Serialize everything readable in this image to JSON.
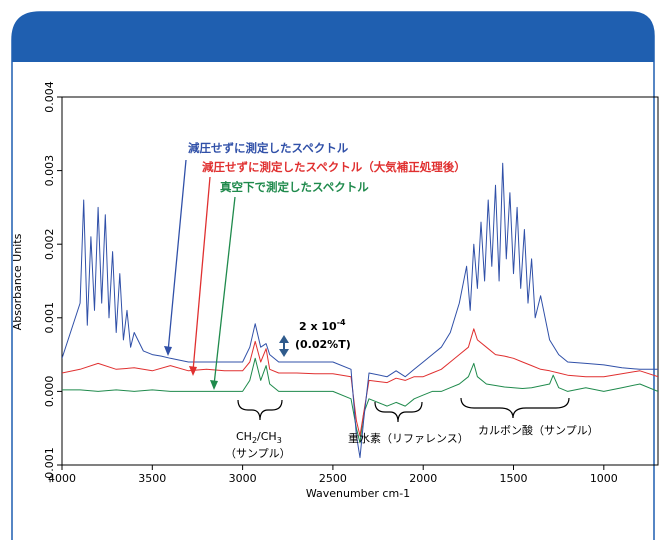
{
  "chart_data": {
    "type": "line",
    "title": "",
    "xlabel": "Wavenumber cm-1",
    "ylabel": "Absorbance Units",
    "xlim": [
      4000,
      700
    ],
    "x_reversed": true,
    "ylim": [
      -0.001,
      0.004
    ],
    "x_ticks": [
      "4000",
      "3500",
      "3000",
      "2500",
      "2000",
      "1500",
      "1000"
    ],
    "x_tick_values": [
      4000,
      3500,
      3000,
      2500,
      2000,
      1500,
      1000
    ],
    "y_ticks": [
      "-0.001",
      "0.000",
      "0.001",
      "0.002",
      "0.003",
      "0.004"
    ],
    "y_tick_values": [
      -0.001,
      0.0,
      0.001,
      0.002,
      0.003,
      0.004
    ],
    "grid": false,
    "series": [
      {
        "name": "減圧せずに測定したスペクトル",
        "color": "#3050a8",
        "x": [
          4000,
          3900,
          3880,
          3860,
          3840,
          3820,
          3800,
          3780,
          3760,
          3740,
          3720,
          3700,
          3680,
          3660,
          3640,
          3620,
          3600,
          3550,
          3500,
          3450,
          3400,
          3300,
          3200,
          3100,
          3000,
          2960,
          2930,
          2900,
          2870,
          2850,
          2800,
          2700,
          2600,
          2500,
          2400,
          2370,
          2350,
          2330,
          2300,
          2200,
          2150,
          2100,
          2050,
          2000,
          1950,
          1900,
          1850,
          1800,
          1760,
          1740,
          1720,
          1700,
          1680,
          1660,
          1640,
          1620,
          1600,
          1580,
          1560,
          1540,
          1520,
          1500,
          1480,
          1460,
          1440,
          1420,
          1400,
          1380,
          1350,
          1300,
          1250,
          1200,
          1100,
          1000,
          900,
          800,
          700
        ],
        "values": [
          0.00045,
          0.0012,
          0.0026,
          0.0009,
          0.0021,
          0.0011,
          0.0025,
          0.0012,
          0.0024,
          0.001,
          0.0019,
          0.0008,
          0.0016,
          0.0007,
          0.0011,
          0.0006,
          0.0008,
          0.00055,
          0.0005,
          0.00048,
          0.00045,
          0.0004,
          0.0004,
          0.0004,
          0.0004,
          0.0006,
          0.00092,
          0.0006,
          0.00065,
          0.0005,
          0.0004,
          0.0004,
          0.0004,
          0.0004,
          0.0003,
          -0.0006,
          -0.0009,
          -0.0004,
          0.00025,
          0.0002,
          0.00028,
          0.0002,
          0.0003,
          0.0004,
          0.0005,
          0.0006,
          0.0008,
          0.0012,
          0.0017,
          0.0011,
          0.002,
          0.0014,
          0.0023,
          0.0015,
          0.0026,
          0.0017,
          0.0028,
          0.0015,
          0.0031,
          0.0018,
          0.0027,
          0.0016,
          0.0025,
          0.0014,
          0.0022,
          0.0012,
          0.0018,
          0.001,
          0.0013,
          0.0007,
          0.0005,
          0.0004,
          0.00038,
          0.00036,
          0.00032,
          0.0003,
          0.0003
        ]
      },
      {
        "name": "減圧せずに測定したスペクトル（大気補正処理後）",
        "color": "#e03030",
        "x": [
          4000,
          3900,
          3800,
          3700,
          3600,
          3500,
          3400,
          3300,
          3200,
          3100,
          3000,
          2960,
          2930,
          2900,
          2870,
          2850,
          2800,
          2700,
          2600,
          2500,
          2400,
          2370,
          2350,
          2330,
          2300,
          2200,
          2150,
          2100,
          2050,
          2000,
          1950,
          1900,
          1850,
          1800,
          1750,
          1720,
          1700,
          1650,
          1600,
          1550,
          1500,
          1450,
          1400,
          1350,
          1300,
          1250,
          1200,
          1100,
          1000,
          900,
          800,
          700
        ],
        "values": [
          0.00025,
          0.0003,
          0.00038,
          0.0003,
          0.00032,
          0.00028,
          0.00035,
          0.00028,
          0.0003,
          0.00028,
          0.00028,
          0.0004,
          0.00068,
          0.0004,
          0.00058,
          0.0003,
          0.00025,
          0.00025,
          0.00024,
          0.00024,
          0.0002,
          -0.0004,
          -0.0006,
          -0.0003,
          0.00015,
          0.00012,
          0.00018,
          0.00015,
          0.0002,
          0.0002,
          0.00025,
          0.0003,
          0.0004,
          0.0005,
          0.0006,
          0.00085,
          0.0007,
          0.0006,
          0.0005,
          0.00048,
          0.00045,
          0.0004,
          0.00035,
          0.0003,
          0.00028,
          0.00025,
          0.00022,
          0.0002,
          0.0002,
          0.00024,
          0.00028,
          0.0002
        ]
      },
      {
        "name": "真空下で測定したスペクトル",
        "color": "#1f8a4c",
        "x": [
          4000,
          3900,
          3800,
          3700,
          3600,
          3500,
          3400,
          3300,
          3200,
          3100,
          3000,
          2960,
          2930,
          2900,
          2870,
          2850,
          2800,
          2700,
          2600,
          2500,
          2400,
          2370,
          2350,
          2330,
          2300,
          2200,
          2150,
          2100,
          2050,
          2000,
          1950,
          1900,
          1850,
          1800,
          1750,
          1720,
          1700,
          1650,
          1600,
          1550,
          1500,
          1450,
          1400,
          1300,
          1280,
          1250,
          1200,
          1100,
          1000,
          900,
          800,
          700
        ],
        "values": [
          2e-05,
          2e-05,
          0.0,
          2e-05,
          0.0,
          2e-05,
          0.0,
          0.0,
          0.0,
          0.0,
          0.0,
          0.00015,
          0.00045,
          0.00015,
          0.00035,
          0.0001,
          0.0,
          0.0,
          0.0,
          0.0,
          -0.0001,
          -0.0005,
          -0.0007,
          -0.0003,
          -0.0001,
          -0.0002,
          -0.00015,
          -0.0002,
          -0.0001,
          -5e-05,
          0.0,
          0.0,
          5e-05,
          0.0001,
          0.0002,
          0.00038,
          0.0002,
          0.0001,
          8e-05,
          6e-05,
          5e-05,
          4e-05,
          5e-05,
          0.0001,
          0.00022,
          5e-05,
          0.0,
          5e-05,
          0.0,
          5e-05,
          0.0001,
          0.0
        ]
      }
    ]
  },
  "legend": [
    {
      "text": "減圧せずに測定したスペクトル",
      "color": "#3050a8"
    },
    {
      "text": "減圧せずに測定したスペクトル（大気補正処理後）",
      "color": "#e03030"
    },
    {
      "text": "真空下で測定したスペクトル",
      "color": "#1f8a4c"
    }
  ],
  "annotations": {
    "scale_bar_value": "2 x 10",
    "scale_bar_exp": "-4",
    "scale_bar_percent": "(0.02%T)",
    "ch_formula_1": "CH",
    "ch_sub_1": "2",
    "ch_formula_2": "/CH",
    "ch_sub_2": "3",
    "ch_sample": "（サンプル）",
    "heavy_water": "重水素（リファレンス）",
    "carboxylic": "カルボン酸（サンプル）"
  },
  "colors": {
    "header_band": "#1f5fb0",
    "frame": "#1f5fb0"
  }
}
